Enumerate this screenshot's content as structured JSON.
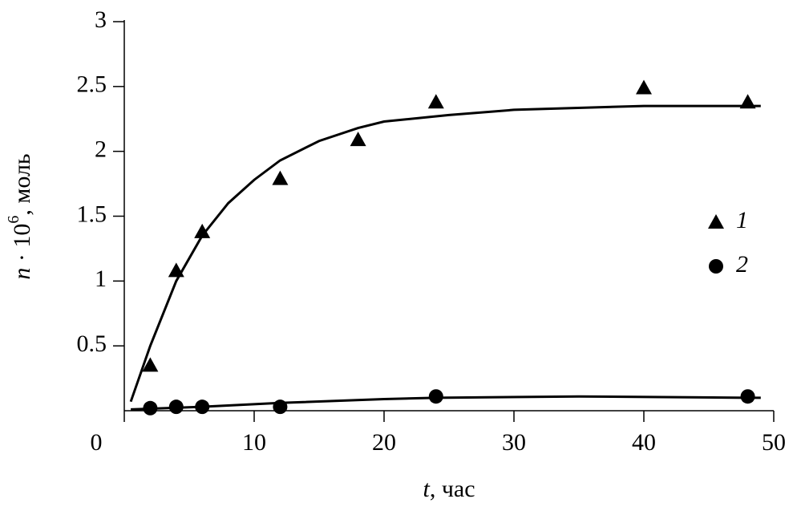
{
  "chart_data": {
    "type": "scatter",
    "xlabel": [
      "t",
      ", час"
    ],
    "ylabel": [
      "n",
      " · 10",
      "6",
      ", моль"
    ],
    "xlim": [
      0,
      50
    ],
    "ylim": [
      0,
      3
    ],
    "xticks": [
      0,
      10,
      20,
      30,
      40,
      50
    ],
    "yticks": [
      0.5,
      1,
      1.5,
      2,
      2.5,
      3
    ],
    "legend": "right",
    "series": [
      {
        "name": "1",
        "marker": "triangle",
        "color": "#000000",
        "x": [
          2,
          4,
          6,
          12,
          18,
          24,
          40,
          48
        ],
        "values": [
          0.35,
          1.08,
          1.38,
          1.79,
          2.09,
          2.38,
          2.49,
          2.38
        ],
        "fit": {
          "x": [
            0.5,
            2,
            4,
            6,
            8,
            10,
            12,
            15,
            18,
            20,
            25,
            30,
            40,
            49
          ],
          "values": [
            0.07,
            0.5,
            1.0,
            1.35,
            1.6,
            1.78,
            1.93,
            2.08,
            2.18,
            2.23,
            2.28,
            2.32,
            2.35,
            2.35
          ]
        }
      },
      {
        "name": "2",
        "marker": "circle",
        "color": "#000000",
        "x": [
          2,
          4,
          6,
          12,
          24,
          48
        ],
        "values": [
          0.02,
          0.03,
          0.03,
          0.03,
          0.11,
          0.11
        ],
        "fit": {
          "x": [
            0.5,
            6,
            12,
            20,
            24,
            35,
            48,
            49
          ],
          "values": [
            0.01,
            0.03,
            0.06,
            0.09,
            0.1,
            0.11,
            0.1,
            0.1
          ]
        }
      }
    ]
  }
}
